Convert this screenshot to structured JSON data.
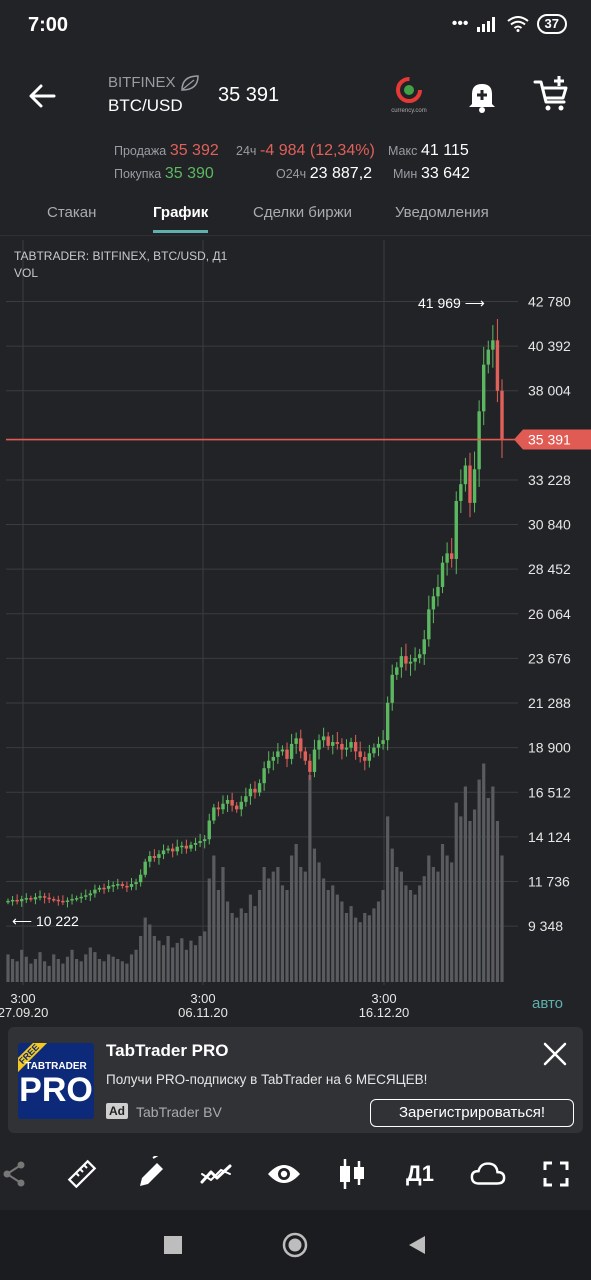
{
  "status": {
    "time": "7:00",
    "battery": "37"
  },
  "header": {
    "exchange": "BITFINEX",
    "pair": "BTC/USD",
    "price": "35 391",
    "logo_text": "currency.com"
  },
  "stats": {
    "sell_label": "Продажа",
    "sell_value": "35 392",
    "buy_label": "Покупка",
    "buy_value": "35 390",
    "change_label": "24ч",
    "change_value": "-4 984 (12,34%)",
    "volume_label": "O24ч",
    "volume_value": "23 887,2",
    "max_label": "Макс",
    "max_value": "41 115",
    "min_label": "Мин",
    "min_value": "33 642"
  },
  "tabs": [
    {
      "label": "Стакан"
    },
    {
      "label": "График"
    },
    {
      "label": "Сделки биржи"
    },
    {
      "label": "Уведомления"
    }
  ],
  "chart_meta": {
    "source": "TABTRADER: BITFINEX, BTC/USD, Д1",
    "vol": "VOL"
  },
  "chart_data": {
    "type": "candlestick",
    "y_ticks": [
      "42 780",
      "40 392",
      "38 004",
      "35 391",
      "33 228",
      "30 840",
      "28 452",
      "26 064",
      "23 676",
      "21 288",
      "18 900",
      "16 512",
      "14 124",
      "11 736",
      "9 348"
    ],
    "ylim": [
      8500,
      43500
    ],
    "current_price": 35391,
    "current_price_label": "35 391",
    "max_annotation": "41 969 ⟶",
    "min_annotation": "⟵ 10 222",
    "x_ticks": [
      {
        "time": "3:00",
        "date": "27.09.20"
      },
      {
        "time": "3:00",
        "date": "06.11.20"
      },
      {
        "time": "3:00",
        "date": "16.12.20"
      }
    ],
    "auto_label": "авто",
    "closes": [
      10700,
      10750,
      10680,
      10800,
      10850,
      10780,
      10900,
      10950,
      10870,
      10800,
      10760,
      10700,
      10650,
      10720,
      10800,
      10850,
      10920,
      11000,
      11100,
      11300,
      11400,
      11350,
      11500,
      11550,
      11600,
      11500,
      11450,
      11600,
      11700,
      12100,
      12800,
      13100,
      13000,
      13200,
      13400,
      13500,
      13350,
      13600,
      13650,
      13500,
      13700,
      13800,
      13900,
      14000,
      15000,
      15700,
      15600,
      15900,
      16100,
      15800,
      15600,
      16000,
      16300,
      16700,
      16500,
      17000,
      17800,
      18200,
      18400,
      18700,
      18800,
      18300,
      19100,
      19400,
      18700,
      18200,
      17600,
      18800,
      19300,
      19500,
      19000,
      19200,
      19100,
      18800,
      18900,
      19200,
      18700,
      18400,
      18200,
      18600,
      18900,
      19100,
      19300,
      21300,
      22800,
      23200,
      23800,
      23400,
      23500,
      23700,
      23900,
      24700,
      26300,
      27000,
      27500,
      28800,
      29300,
      29000,
      32100,
      33000,
      34000,
      32000,
      33800,
      36900,
      39400,
      40200,
      40700,
      38000,
      35391
    ],
    "volume_levels": [
      0.12,
      0.1,
      0.09,
      0.14,
      0.11,
      0.08,
      0.1,
      0.13,
      0.09,
      0.07,
      0.12,
      0.1,
      0.08,
      0.11,
      0.14,
      0.1,
      0.09,
      0.12,
      0.15,
      0.13,
      0.1,
      0.09,
      0.12,
      0.11,
      0.1,
      0.09,
      0.08,
      0.12,
      0.14,
      0.2,
      0.28,
      0.25,
      0.2,
      0.18,
      0.16,
      0.2,
      0.15,
      0.17,
      0.19,
      0.14,
      0.18,
      0.16,
      0.2,
      0.22,
      0.45,
      0.55,
      0.4,
      0.5,
      0.35,
      0.3,
      0.28,
      0.32,
      0.3,
      0.38,
      0.33,
      0.4,
      0.5,
      0.45,
      0.48,
      0.5,
      0.42,
      0.4,
      0.55,
      0.6,
      0.5,
      0.48,
      0.9,
      0.58,
      0.52,
      0.45,
      0.4,
      0.42,
      0.38,
      0.35,
      0.3,
      0.33,
      0.28,
      0.26,
      0.3,
      0.29,
      0.32,
      0.35,
      0.4,
      0.72,
      0.58,
      0.5,
      0.48,
      0.42,
      0.4,
      0.38,
      0.42,
      0.46,
      0.55,
      0.5,
      0.48,
      0.6,
      0.55,
      0.52,
      0.78,
      0.72,
      0.85,
      0.7,
      0.75,
      0.88,
      0.95,
      0.8,
      0.85,
      0.7,
      0.55
    ]
  },
  "ad": {
    "badge_free": "FREE",
    "logo_brand": "TABTRADER",
    "logo_pro": "PRO",
    "title": "TabTrader PRO",
    "text": "Получи PRO-подписку в TabTrader на 6 МЕСЯЦЕВ!",
    "ad_badge": "Ad",
    "sponsor": "TabTrader BV",
    "cta": "Зарегистрироваться!"
  },
  "toolbar": {
    "timeframe": "Д1"
  },
  "colors": {
    "up": "#5cb860",
    "down": "#e0605a",
    "accent": "#5fb0ae",
    "price_line": "#e15b55"
  }
}
